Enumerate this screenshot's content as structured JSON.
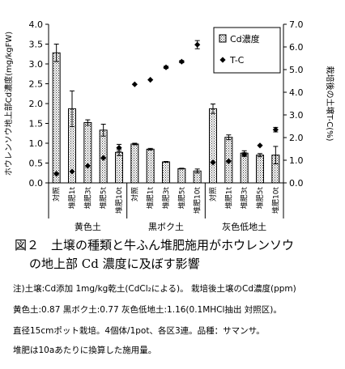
{
  "chart_data": {
    "type": "bar",
    "categories": [
      "対照",
      "堆肥1t",
      "堆肥3t",
      "堆肥5t",
      "堆肥10t",
      "対照",
      "堆肥1t",
      "堆肥3t",
      "堆肥5t",
      "堆肥10t",
      "対照",
      "堆肥1t",
      "堆肥3t",
      "堆肥5t",
      "堆肥10t"
    ],
    "groups": [
      {
        "label": "黄色土",
        "count": 5
      },
      {
        "label": "黒ボク土",
        "count": 5
      },
      {
        "label": "灰色低地土",
        "count": 5
      }
    ],
    "series": [
      {
        "name": "Cd濃度",
        "axis": "left",
        "values": [
          3.28,
          1.87,
          1.52,
          1.33,
          0.77,
          0.98,
          0.85,
          0.53,
          0.36,
          0.3,
          1.87,
          1.15,
          0.75,
          0.7,
          0.7
        ],
        "errors": [
          0.22,
          0.45,
          0.07,
          0.15,
          0.08,
          0.02,
          0.02,
          0.01,
          0.01,
          0.05,
          0.12,
          0.06,
          0.06,
          0.04,
          0.22
        ]
      },
      {
        "name": "T-C",
        "axis": "right",
        "values": [
          0.4,
          0.5,
          0.75,
          1.1,
          1.55,
          4.35,
          4.55,
          5.1,
          5.35,
          6.1,
          0.9,
          0.95,
          1.25,
          1.65,
          2.35
        ],
        "errors": [
          0,
          0,
          0,
          0,
          0.15,
          0,
          0,
          0.05,
          0.05,
          0.18,
          0,
          0,
          0.08,
          0,
          0.1
        ]
      }
    ],
    "ylabel": "ホウレンソウ地上部Cd濃度(mg/kgFW)",
    "y2label": "栽培後の土壌T-C(%)",
    "ylim": [
      0,
      4.0
    ],
    "yticks": [
      "0.0",
      "0.5",
      "1.0",
      "1.5",
      "2.0",
      "2.5",
      "3.0",
      "3.5",
      "4.0"
    ],
    "y2lim": [
      0,
      7.0
    ],
    "y2ticks": [
      "0.0",
      "1.0",
      "2.0",
      "3.0",
      "4.0",
      "5.0",
      "6.0",
      "7.0"
    ],
    "legend_position": "top-right",
    "grid": false
  },
  "caption": {
    "line1": "図２　土壌の種類と牛ふん堆肥施用がホウレンソウ",
    "line2": "の地上部 Cd 濃度に及ぼす影響"
  },
  "notes": [
    "注)土壌:Cd添加 1mg/kg乾土(CdCl₂による)。 栽培後土壌のCd濃度(ppm)",
    "黄色土:0.87  黒ボク土:0.77  灰色低地土:1.16(0.1MHCl抽出 対照区)。",
    "直径15cmポット栽培。4個体/1pot、各区3連。品種：サマンサ。",
    "堆肥は10aあたりに換算した施用量。"
  ]
}
